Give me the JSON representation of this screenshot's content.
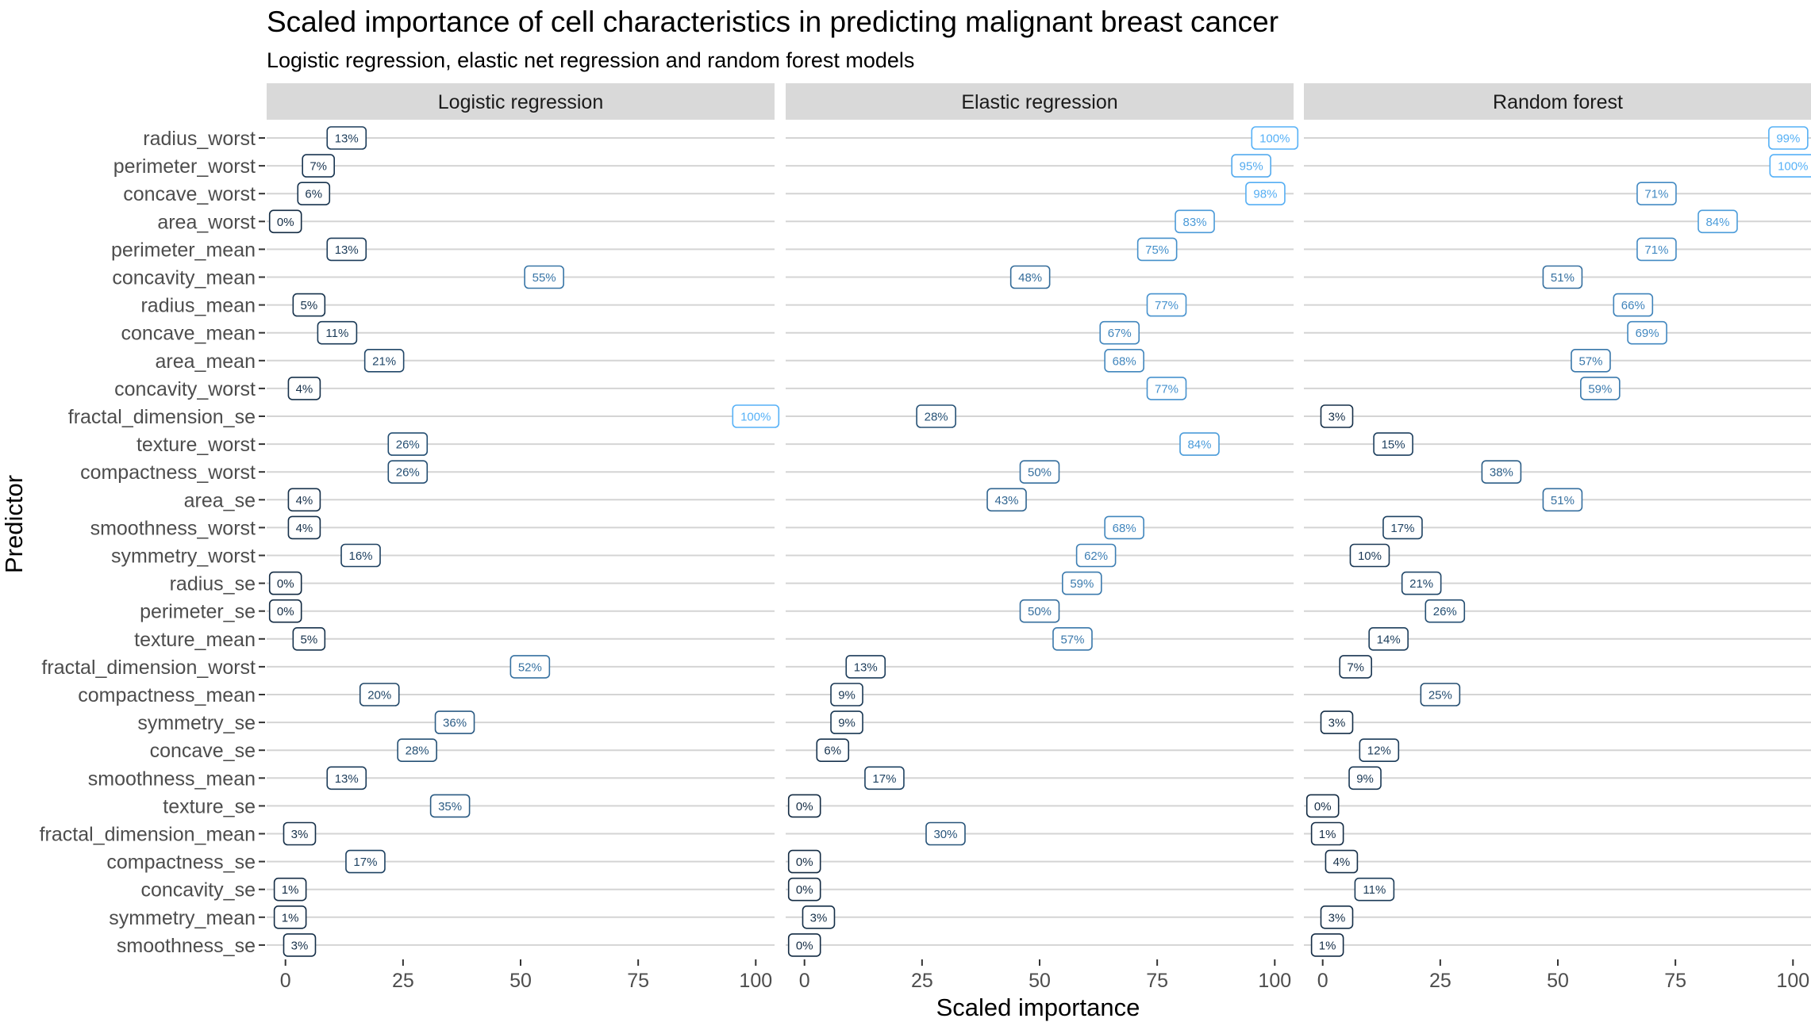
{
  "chart_data": {
    "type": "label-dot",
    "title": "Scaled importance of cell characteristics in predicting malignant breast cancer",
    "subtitle": "Logistic regression, elastic net regression and random forest models",
    "xlabel": "Scaled importance",
    "ylabel": "Predictor",
    "xlim": [
      -4,
      104
    ],
    "x_ticks": [
      0,
      25,
      50,
      75,
      100
    ],
    "x_tick_labels": [
      "0",
      "25",
      "50",
      "75",
      "100"
    ],
    "grid": true,
    "color_scale": {
      "low": "#132b43",
      "high": "#56b1f7"
    },
    "predictors": [
      "radius_worst",
      "perimeter_worst",
      "concave_worst",
      "area_worst",
      "perimeter_mean",
      "concavity_mean",
      "radius_mean",
      "concave_mean",
      "area_mean",
      "concavity_worst",
      "fractal_dimension_se",
      "texture_worst",
      "compactness_worst",
      "area_se",
      "smoothness_worst",
      "symmetry_worst",
      "radius_se",
      "perimeter_se",
      "texture_mean",
      "fractal_dimension_worst",
      "compactness_mean",
      "symmetry_se",
      "concave_se",
      "smoothness_mean",
      "texture_se",
      "fractal_dimension_mean",
      "compactness_se",
      "concavity_se",
      "symmetry_mean",
      "smoothness_se"
    ],
    "panels": [
      {
        "name": "Logistic regression",
        "values": [
          13,
          7,
          6,
          0,
          13,
          55,
          5,
          11,
          21,
          4,
          100,
          26,
          26,
          4,
          4,
          16,
          0,
          0,
          5,
          52,
          20,
          36,
          28,
          13,
          35,
          3,
          17,
          1,
          1,
          3
        ],
        "labels": [
          "13%",
          "7%",
          "6%",
          "0%",
          "13%",
          "55%",
          "5%",
          "11%",
          "21%",
          "4%",
          "100%",
          "26%",
          "26%",
          "4%",
          "4%",
          "16%",
          "0%",
          "0%",
          "5%",
          "52%",
          "20%",
          "36%",
          "28%",
          "13%",
          "35%",
          "3%",
          "17%",
          "1%",
          "1%",
          "3%"
        ]
      },
      {
        "name": "Elastic regression",
        "values": [
          100,
          95,
          98,
          83,
          75,
          48,
          77,
          67,
          68,
          77,
          28,
          84,
          50,
          43,
          68,
          62,
          59,
          50,
          57,
          13,
          9,
          9,
          6,
          17,
          0,
          30,
          0,
          0,
          3,
          0
        ],
        "labels": [
          "100%",
          "95%",
          "98%",
          "83%",
          "75%",
          "48%",
          "77%",
          "67%",
          "68%",
          "77%",
          "28%",
          "84%",
          "50%",
          "43%",
          "68%",
          "62%",
          "59%",
          "50%",
          "57%",
          "13%",
          "9%",
          "9%",
          "6%",
          "17%",
          "0%",
          "30%",
          "0%",
          "0%",
          "3%",
          "0%"
        ]
      },
      {
        "name": "Random forest",
        "values": [
          99,
          100,
          71,
          84,
          71,
          51,
          66,
          69,
          57,
          59,
          3,
          15,
          38,
          51,
          17,
          10,
          21,
          26,
          14,
          7,
          25,
          3,
          12,
          9,
          0,
          1,
          4,
          11,
          3,
          1
        ],
        "labels": [
          "99%",
          "100%",
          "71%",
          "84%",
          "71%",
          "51%",
          "66%",
          "69%",
          "57%",
          "59%",
          "3%",
          "15%",
          "38%",
          "51%",
          "17%",
          "10%",
          "21%",
          "26%",
          "14%",
          "7%",
          "25%",
          "3%",
          "12%",
          "9%",
          "0%",
          "1%",
          "4%",
          "11%",
          "3%",
          "1%"
        ]
      }
    ]
  }
}
